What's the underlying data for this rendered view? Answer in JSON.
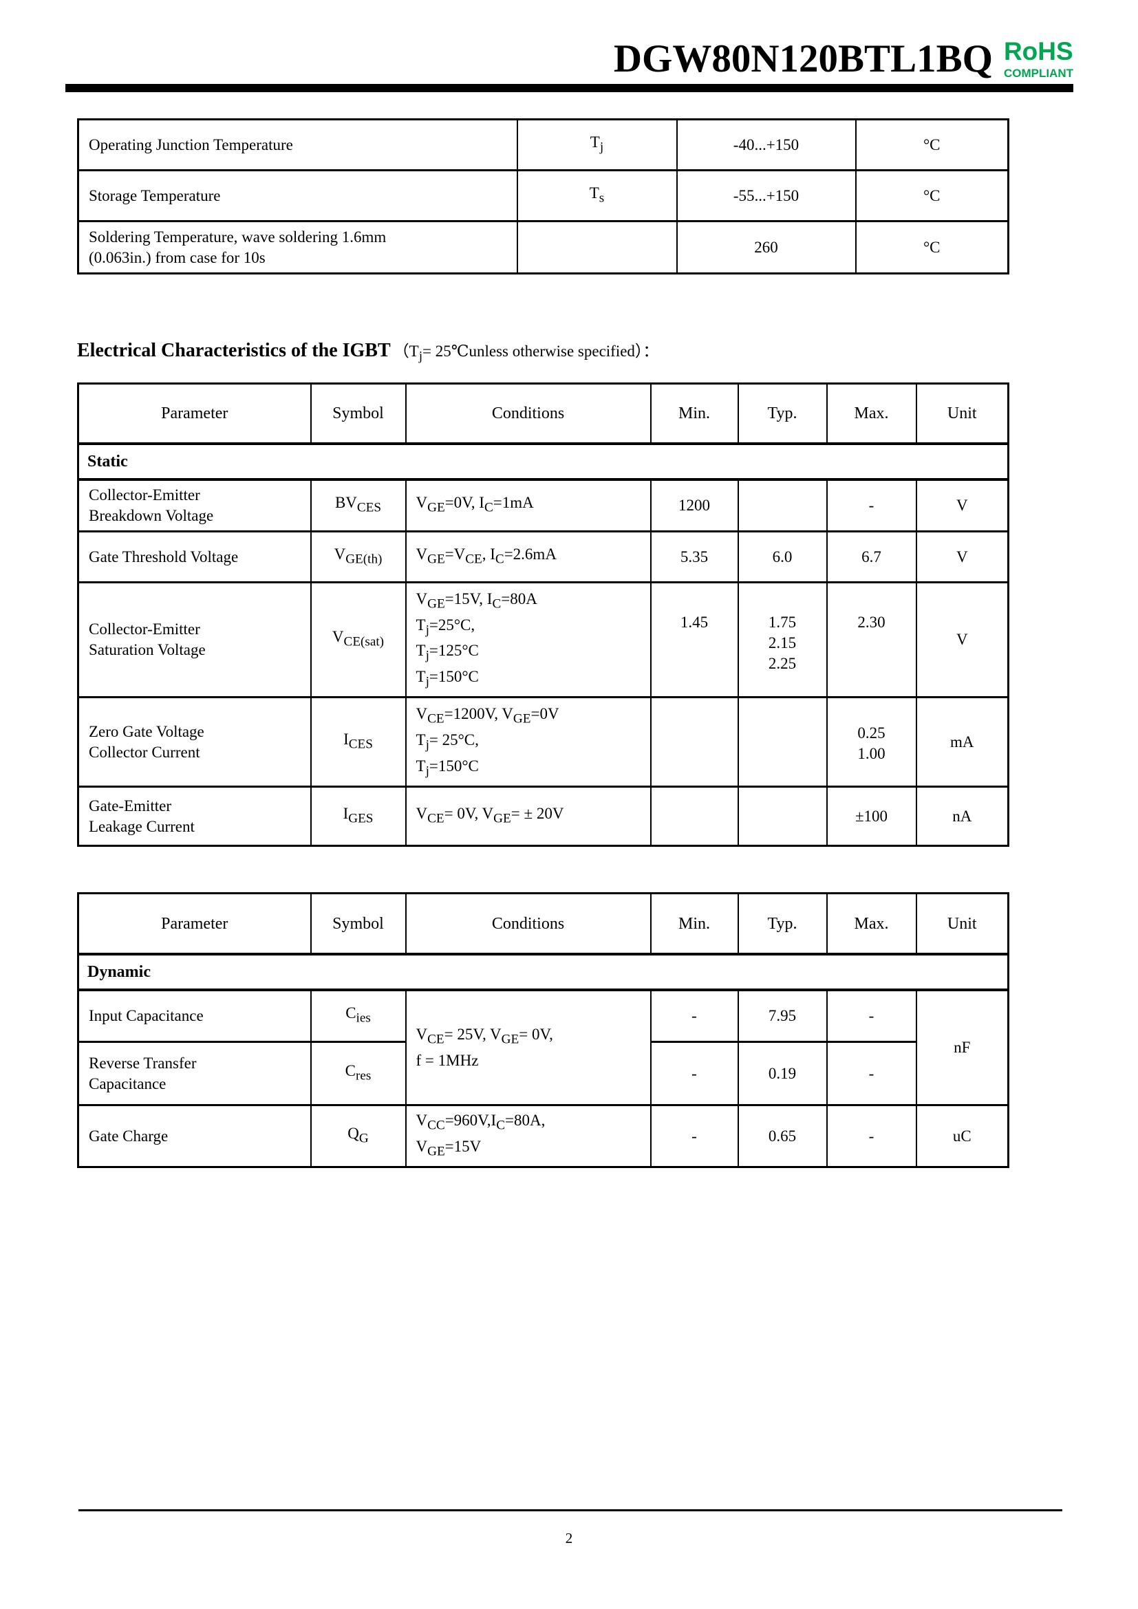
{
  "header": {
    "title": "DGW80N120BTL1BQ",
    "rohs": {
      "line1": "RoHS",
      "line2": "COMPLIANT",
      "color": "#00A651"
    }
  },
  "ratings_table": {
    "rows": [
      {
        "parameter": "Operating Junction Temperature",
        "symbol": "T~j~",
        "value": "-40...+150",
        "unit": "°C"
      },
      {
        "parameter": "Storage Temperature",
        "symbol": "T~s~",
        "value": "-55...+150",
        "unit": "°C"
      },
      {
        "parameter": "Soldering  Temperature,  wave  soldering  1.6mm\n(0.063in.) from case for 10s",
        "symbol": "",
        "value": "260",
        "unit": "°C"
      }
    ]
  },
  "section_heading": {
    "title": "Electrical Characteristics of the IGBT",
    "note": "（T~j~= 25℃unless otherwise specified）："
  },
  "static_table": {
    "headers": {
      "parameter": "Parameter",
      "symbol": "Symbol",
      "conditions": "Conditions",
      "min": "Min.",
      "typ": "Typ.",
      "max": "Max.",
      "unit": "Unit"
    },
    "group": "Static",
    "rows": [
      {
        "parameter": "Collector-Emitter\nBreakdown Voltage",
        "symbol": "BV~CES~",
        "conditions": "V~GE~=0V, I~C~=1mA",
        "min": "1200",
        "typ": "",
        "max": "-",
        "unit": "V"
      },
      {
        "parameter": "Gate Threshold Voltage",
        "symbol": "V~GE(th)~",
        "conditions": "V~GE~=V~CE~, I~C~=2.6mA",
        "min": "5.35",
        "typ": "6.0",
        "max": "6.7",
        "unit": "V"
      },
      {
        "parameter": "Collector-Emitter\nSaturation Voltage",
        "symbol": "V~CE(sat)~",
        "conditions": "V~GE~=15V, I~C~=80A\nT~j~=25°C,\nT~j~=125°C\nT~j~=150°C",
        "min": "1.45",
        "typ": "1.75\n2.15\n2.25",
        "max": "2.30",
        "unit": "V"
      },
      {
        "parameter": "Zero Gate Voltage\nCollector Current",
        "symbol": "I~CES~",
        "conditions": "V~CE~=1200V, V~GE~=0V\nT~j~= 25°C,\nT~j~=150°C",
        "min": "",
        "typ": "",
        "max": "0.25\n1.00",
        "unit": "mA"
      },
      {
        "parameter": "Gate-Emitter\nLeakage Current",
        "symbol": "I~GES~",
        "conditions": "V~CE~= 0V, V~GE~= ± 20V",
        "min": "",
        "typ": "",
        "max": "±100",
        "unit": "nA"
      }
    ]
  },
  "dynamic_table": {
    "headers": {
      "parameter": "Parameter",
      "symbol": "Symbol",
      "conditions": "Conditions",
      "min": "Min.",
      "typ": "Typ.",
      "max": "Max.",
      "unit": "Unit"
    },
    "group": "Dynamic",
    "rows": [
      {
        "parameter": "Input Capacitance",
        "symbol": "C~ies~",
        "conditions": "V~CE~= 25V, V~GE~= 0V,\nf = 1MHz",
        "min": "-",
        "typ": "7.95",
        "max": "-",
        "unit": "nF"
      },
      {
        "parameter": "Reverse Transfer\nCapacitance",
        "symbol": "C~res~",
        "min": "-",
        "typ": "0.19",
        "max": "-"
      },
      {
        "parameter": "Gate Charge",
        "symbol": "Q~G~",
        "conditions": "V~CC~=960V,I~C~=80A,\nV~GE~=15V",
        "min": "-",
        "typ": "0.65",
        "max": "-",
        "unit": "uC"
      }
    ]
  },
  "footer": {
    "page_number": "2"
  }
}
